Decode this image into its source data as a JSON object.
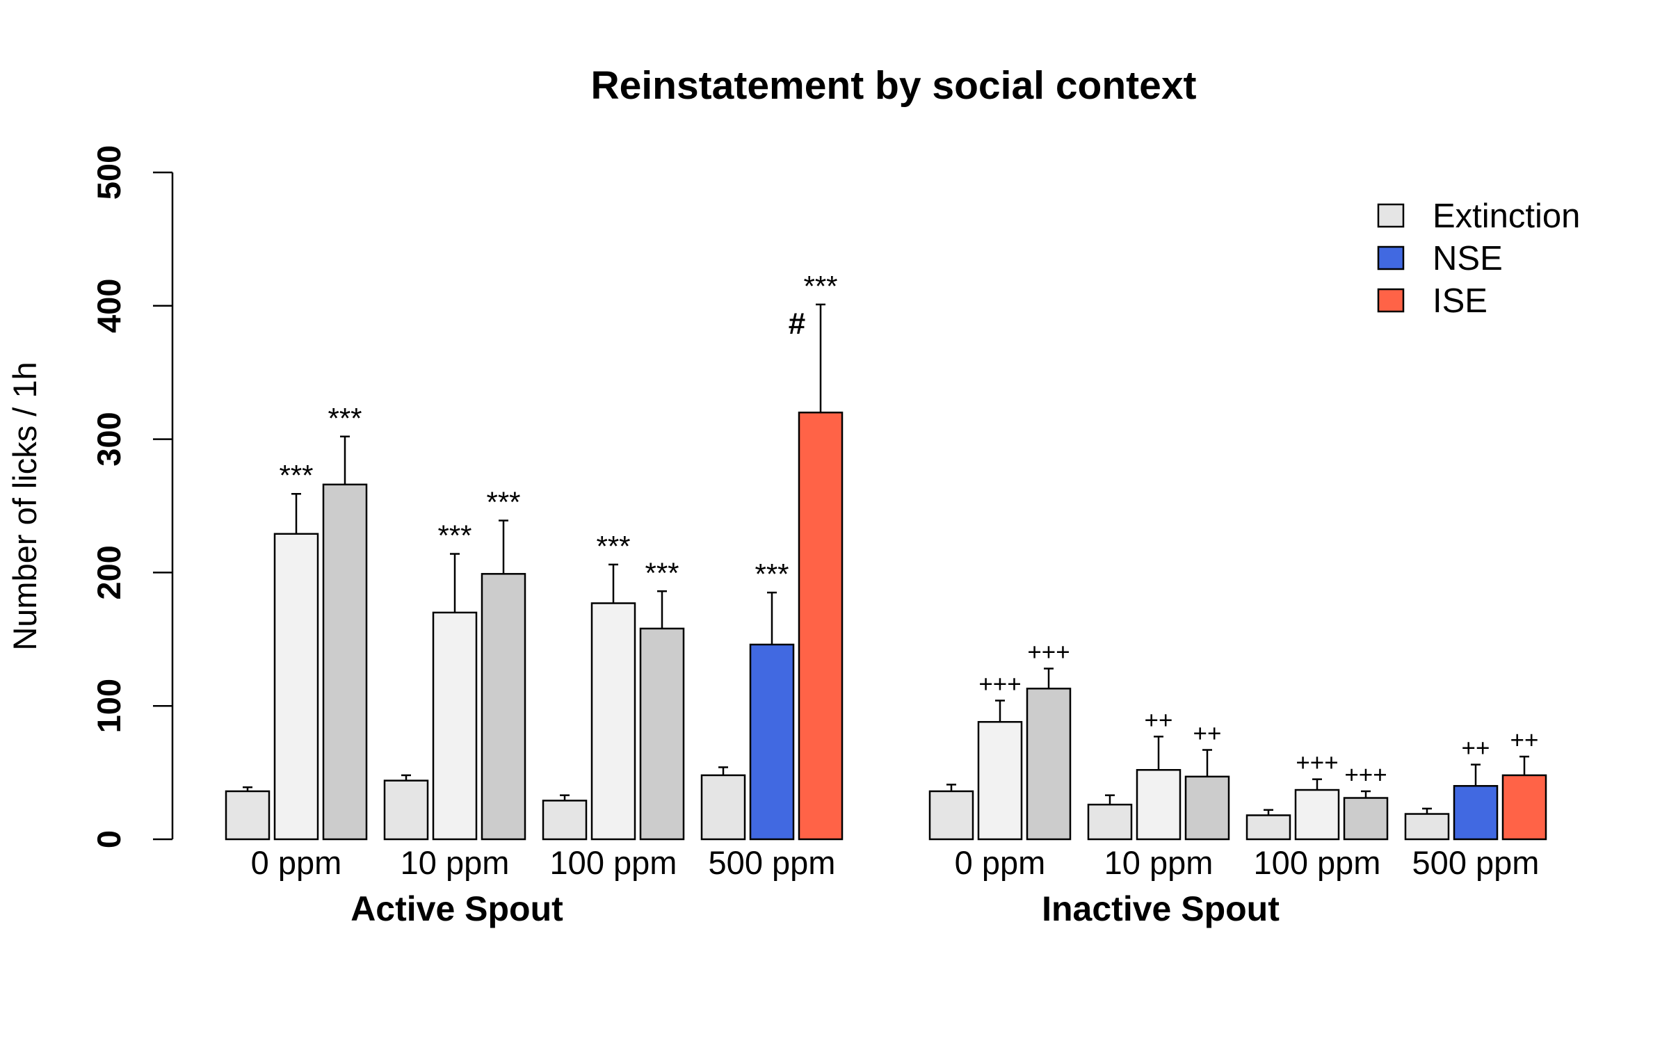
{
  "chart_data": {
    "type": "bar",
    "title": "Reinstatement by social context",
    "ylabel": "Number of licks / 1h",
    "ylim": [
      0,
      500
    ],
    "yticks": [
      0,
      100,
      200,
      300,
      400,
      500
    ],
    "legend": {
      "placement": "top-right",
      "items": [
        {
          "label": "Extinction",
          "color": "#e5e5e5"
        },
        {
          "label": "NSE",
          "color": "#4169e1"
        },
        {
          "label": "ISE",
          "color": "#ff6347"
        }
      ]
    },
    "groups": [
      {
        "label": "Active Spout",
        "categories": [
          {
            "label": "0 ppm",
            "bars": [
              {
                "value": 36,
                "error": 3,
                "color": "#e5e5e5",
                "annotation": ""
              },
              {
                "value": 229,
                "error": 30,
                "color": "#f2f2f2",
                "annotation": "***"
              },
              {
                "value": 266,
                "error": 36,
                "color": "#cccccc",
                "annotation": "***"
              }
            ]
          },
          {
            "label": "10 ppm",
            "bars": [
              {
                "value": 44,
                "error": 4,
                "color": "#e5e5e5",
                "annotation": ""
              },
              {
                "value": 170,
                "error": 44,
                "color": "#f2f2f2",
                "annotation": "***"
              },
              {
                "value": 199,
                "error": 40,
                "color": "#cccccc",
                "annotation": "***"
              }
            ]
          },
          {
            "label": "100 ppm",
            "bars": [
              {
                "value": 29,
                "error": 4,
                "color": "#e5e5e5",
                "annotation": ""
              },
              {
                "value": 177,
                "error": 29,
                "color": "#f2f2f2",
                "annotation": "***"
              },
              {
                "value": 158,
                "error": 28,
                "color": "#cccccc",
                "annotation": "***"
              }
            ]
          },
          {
            "label": "500 ppm",
            "bars": [
              {
                "value": 48,
                "error": 6,
                "color": "#e5e5e5",
                "annotation": ""
              },
              {
                "value": 146,
                "error": 39,
                "color": "#4169e1",
                "annotation": "***"
              },
              {
                "value": 320,
                "error": 81,
                "color": "#ff6347",
                "annotation": "***",
                "annotation2": "#"
              }
            ]
          }
        ]
      },
      {
        "label": "Inactive Spout",
        "categories": [
          {
            "label": "0 ppm",
            "bars": [
              {
                "value": 36,
                "error": 5,
                "color": "#e5e5e5",
                "annotation": ""
              },
              {
                "value": 88,
                "error": 16,
                "color": "#f2f2f2",
                "annotation": "+++"
              },
              {
                "value": 113,
                "error": 15,
                "color": "#cccccc",
                "annotation": "+++"
              }
            ]
          },
          {
            "label": "10 ppm",
            "bars": [
              {
                "value": 26,
                "error": 7,
                "color": "#e5e5e5",
                "annotation": ""
              },
              {
                "value": 52,
                "error": 25,
                "color": "#f2f2f2",
                "annotation": "++"
              },
              {
                "value": 47,
                "error": 20,
                "color": "#cccccc",
                "annotation": "++"
              }
            ]
          },
          {
            "label": "100 ppm",
            "bars": [
              {
                "value": 18,
                "error": 4,
                "color": "#e5e5e5",
                "annotation": ""
              },
              {
                "value": 37,
                "error": 8,
                "color": "#f2f2f2",
                "annotation": "+++"
              },
              {
                "value": 31,
                "error": 5,
                "color": "#cccccc",
                "annotation": "+++"
              }
            ]
          },
          {
            "label": "500 ppm",
            "bars": [
              {
                "value": 19,
                "error": 4,
                "color": "#e5e5e5",
                "annotation": ""
              },
              {
                "value": 40,
                "error": 16,
                "color": "#4169e1",
                "annotation": "++"
              },
              {
                "value": 48,
                "error": 14,
                "color": "#ff6347",
                "annotation": "++"
              }
            ]
          }
        ]
      }
    ]
  }
}
